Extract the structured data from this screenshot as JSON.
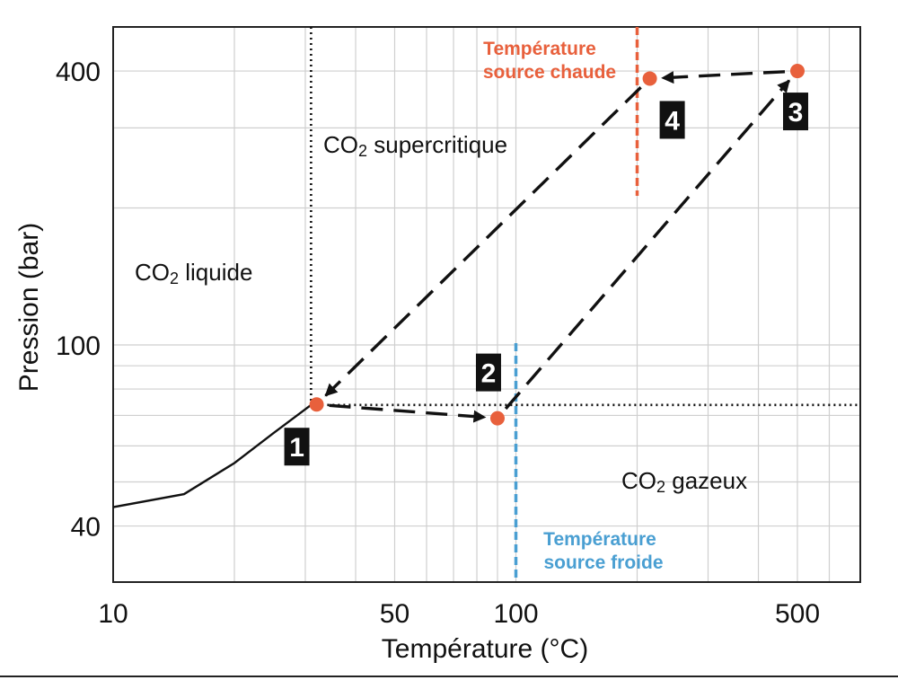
{
  "chart_data": {
    "type": "line",
    "xlabel": "Température (°C)",
    "ylabel": "Pression (bar)",
    "x_scale": "log",
    "y_scale": "log",
    "xlim": [
      10,
      700
    ],
    "ylim": [
      30,
      500
    ],
    "x_ticks": [
      {
        "value": 10,
        "label": "10"
      },
      {
        "value": 50,
        "label": "50"
      },
      {
        "value": 100,
        "label": "100"
      },
      {
        "value": 500,
        "label": "500"
      }
    ],
    "y_ticks": [
      {
        "value": 40,
        "label": "40"
      },
      {
        "value": 100,
        "label": "100"
      },
      {
        "value": 400,
        "label": "400"
      }
    ],
    "grid": true,
    "colors": {
      "hot": "#e8603c",
      "cold": "#4a9fd2",
      "point": "#e8603c",
      "line": "#111111",
      "grid": "#cfcfcf",
      "badge": "#111111"
    },
    "saturation_curve": {
      "x": [
        10,
        15,
        20,
        25,
        31
      ],
      "y": [
        44,
        47,
        55,
        64,
        73.8
      ]
    },
    "critical_point": {
      "x": 31,
      "y": 73.8
    },
    "points": [
      {
        "label": "1",
        "x": 32,
        "y": 74
      },
      {
        "label": "2",
        "x": 90,
        "y": 69
      },
      {
        "label": "3",
        "x": 500,
        "y": 400
      },
      {
        "label": "4",
        "x": 215,
        "y": 385
      }
    ],
    "cycle_paths": [
      [
        {
          "x": 32,
          "y": 74
        },
        {
          "x": 90,
          "y": 69
        }
      ],
      [
        {
          "x": 90,
          "y": 69
        },
        {
          "x": 500,
          "y": 400
        }
      ],
      [
        {
          "x": 500,
          "y": 400
        },
        {
          "x": 215,
          "y": 385
        }
      ],
      [
        {
          "x": 215,
          "y": 385
        },
        {
          "x": 32,
          "y": 74
        }
      ]
    ],
    "hot_source": {
      "x": 200,
      "label_line1": "Température",
      "label_line2": "source chaude"
    },
    "cold_source": {
      "x": 100,
      "label_line1": "Température",
      "label_line2": "source froide"
    },
    "regions": {
      "liquid": {
        "main": "CO",
        "sub": "2",
        "rest": " liquide"
      },
      "supercritical": {
        "main": "CO",
        "sub": "2",
        "rest": " supercritique"
      },
      "gas": {
        "main": "CO",
        "sub": "2",
        "rest": " gazeux"
      }
    }
  }
}
